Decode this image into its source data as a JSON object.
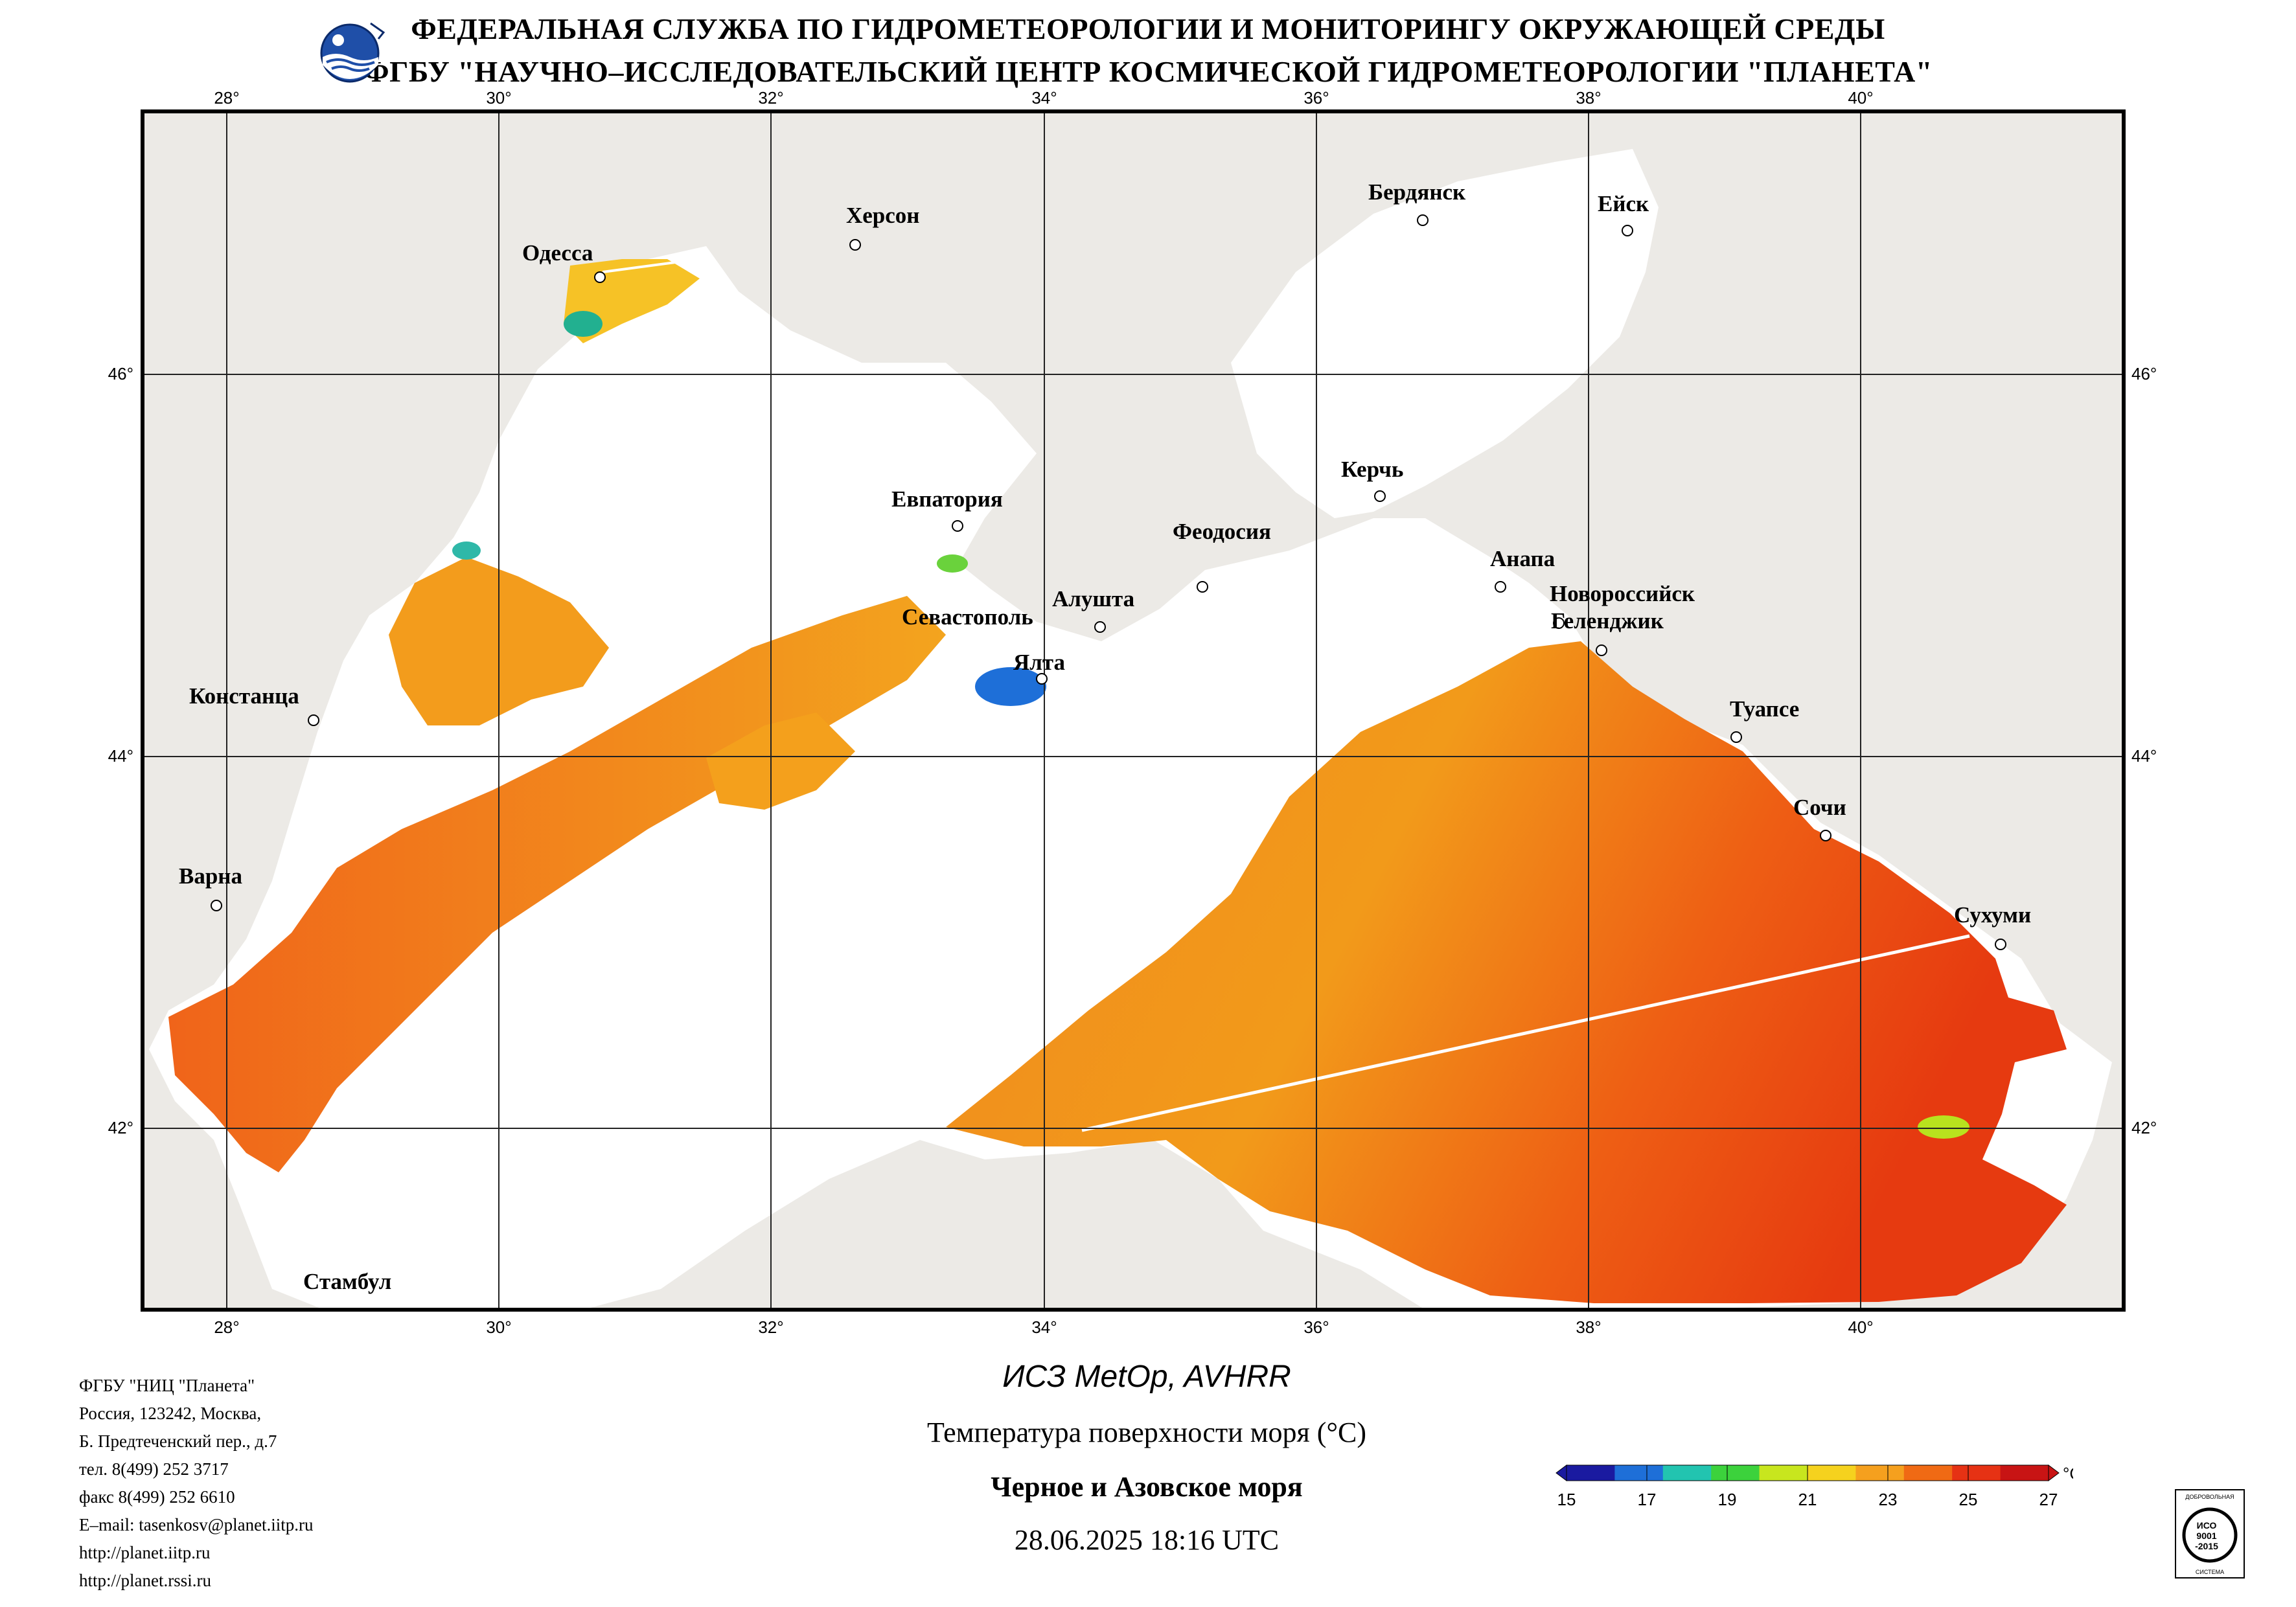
{
  "header": {
    "line1": "ФЕДЕРАЛЬНАЯ СЛУЖБА ПО ГИДРОМЕТЕОРОЛОГИИ И МОНИТОРИНГУ ОКРУЖАЮЩЕЙ СРЕДЫ",
    "line2": "ФГБУ \"НАУЧНО–ИССЛЕДОВАТЕЛЬСКИЙ ЦЕНТР КОСМИЧЕСКОЙ ГИДРОМЕТЕОРОЛОГИИ \"ПЛАНЕТА\""
  },
  "map": {
    "lon_ticks": [
      "28°",
      "30°",
      "32°",
      "34°",
      "36°",
      "38°",
      "40°"
    ],
    "lat_ticks": [
      "46°",
      "44°",
      "42°"
    ],
    "cities": {
      "odessa": "Одесса",
      "kherson": "Херсон",
      "berdyansk": "Бердянск",
      "yeysk": "Ейск",
      "evpatoria": "Евпатория",
      "kerch": "Керчь",
      "feodosia": "Феодосия",
      "sevastopol": "Севастополь",
      "alushta": "Алушта",
      "yalta": "Ялта",
      "anapa": "Анапа",
      "novorossiysk": "Новороссийск",
      "gelendzhik": "Геленджик",
      "constanta": "Констанца",
      "tuapse": "Туапсе",
      "sochi": "Сочи",
      "varna": "Варна",
      "sukhumi": "Сухуми",
      "istanbul": "Стамбул"
    }
  },
  "contacts": [
    "ФГБУ \"НИЦ \"Планета\"",
    "Россия, 123242, Москва,",
    "Б. Предтеченский пер., д.7",
    "тел. 8(499) 252 3717",
    "факс 8(499) 252 6610",
    "E–mail: tasenkosv@planet.iitp.ru",
    "http://planet.iitp.ru",
    "http://planet.rssi.ru"
  ],
  "product": {
    "satellite": "ИСЗ MetOp, AVHRR",
    "parameter": "Температура поверхности моря (°C)",
    "region": "Черное и Азовское моря",
    "timestamp": "28.06.2025 18:16 UTC"
  },
  "colorbar": {
    "unit": "°C",
    "ticks": [
      "15",
      "17",
      "19",
      "21",
      "23",
      "25",
      "27"
    ],
    "colors": [
      "#1a1aa0",
      "#1e6fd8",
      "#22c4b0",
      "#3cd23c",
      "#c8e61e",
      "#f5d21e",
      "#f5a01e",
      "#f06a14",
      "#e63214",
      "#c81414"
    ]
  },
  "certification": {
    "top_text": "ДОБРОВОЛЬНАЯ",
    "text_center1": "ИСО",
    "text_center2": "9001",
    "text_center3": "-2015",
    "bottom_text": "СИСТЕМА"
  }
}
